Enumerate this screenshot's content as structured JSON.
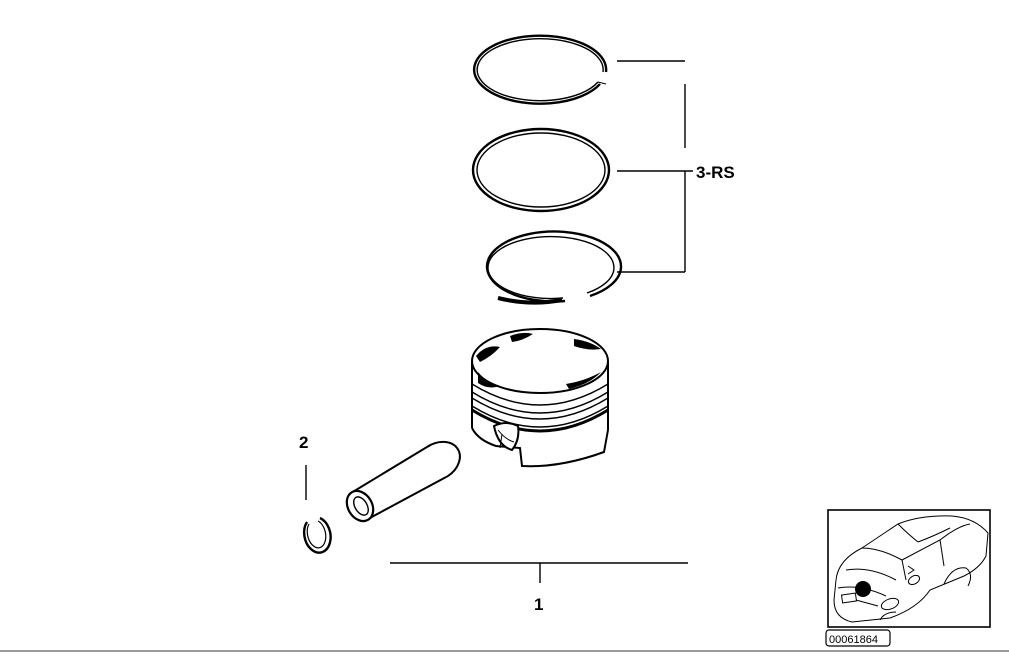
{
  "callouts": {
    "piston_set": "1",
    "snap_ring": "2",
    "ring_set": "3-RS"
  },
  "reference_number": "00061864"
}
